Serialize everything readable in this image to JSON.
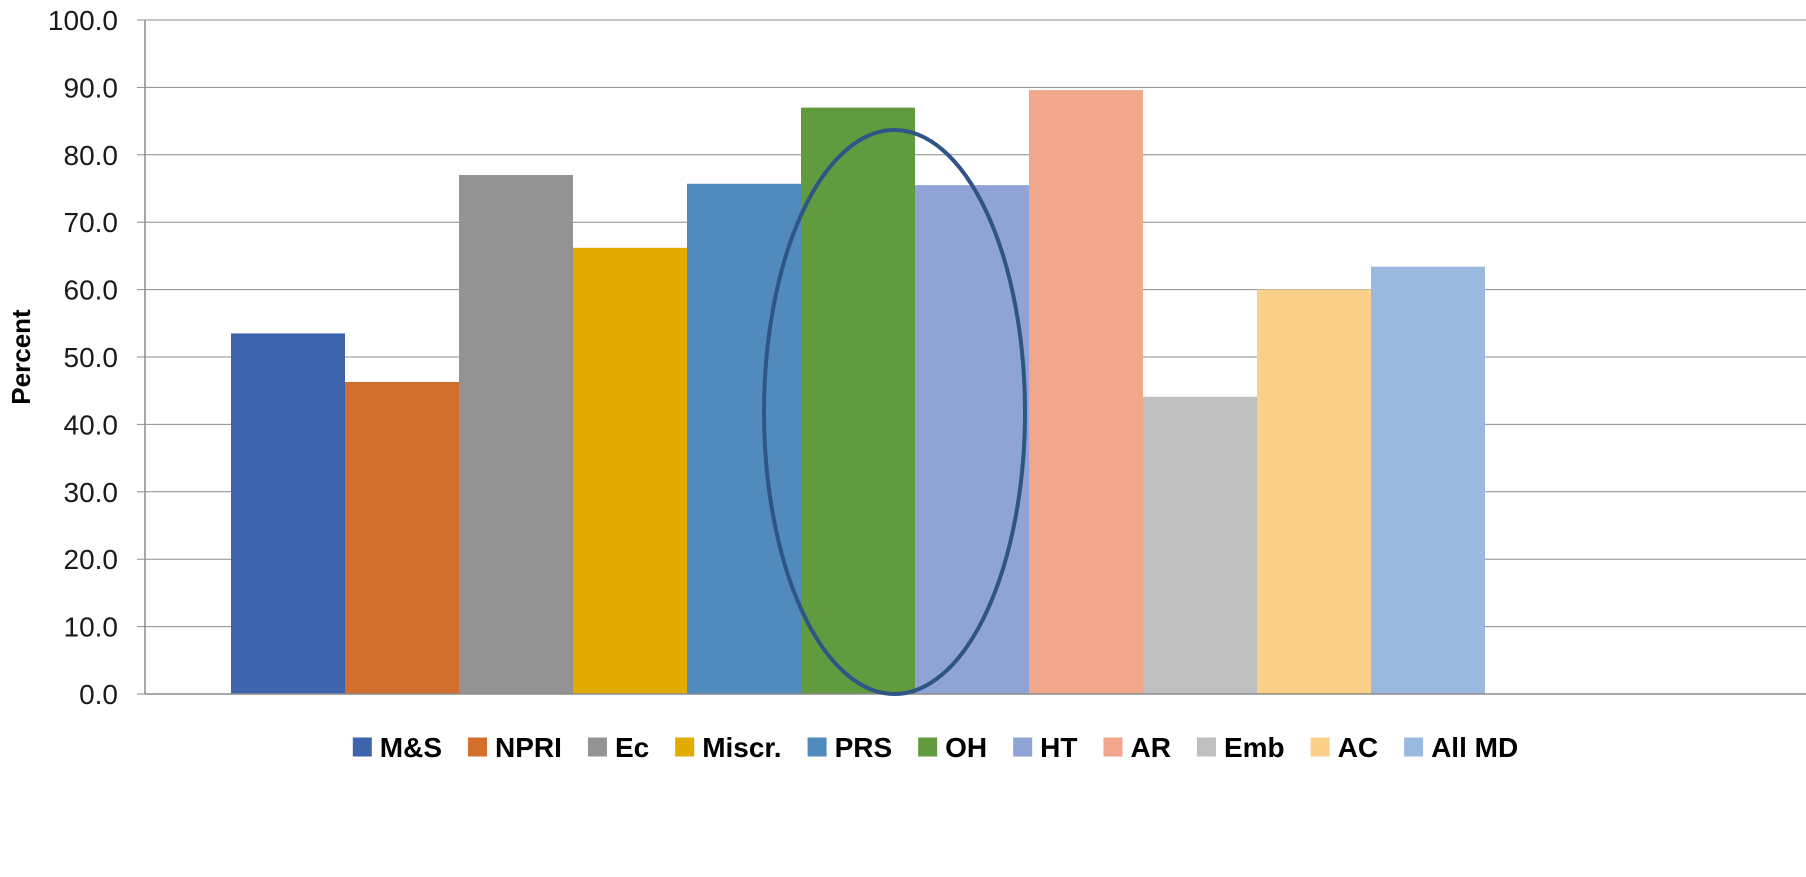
{
  "chart_data": {
    "type": "bar",
    "title": "",
    "xlabel": "",
    "ylabel": "Percent",
    "ylim": [
      0,
      100
    ],
    "y_ticks": [
      "0.0",
      "10.0",
      "20.0",
      "30.0",
      "40.0",
      "50.0",
      "60.0",
      "70.0",
      "80.0",
      "90.0",
      "100.0"
    ],
    "grid": true,
    "legend_position": "bottom",
    "series": [
      {
        "name": "M&S",
        "value": 53.5,
        "color": "#3d64ad"
      },
      {
        "name": "NPRI",
        "value": 46.3,
        "color": "#d36f2c"
      },
      {
        "name": "Ec",
        "value": 77.0,
        "color": "#939393"
      },
      {
        "name": "Miscr.",
        "value": 66.2,
        "color": "#e1ab00"
      },
      {
        "name": "PRS",
        "value": 75.7,
        "color": "#518abd"
      },
      {
        "name": "OH",
        "value": 87.0,
        "color": "#629a40"
      },
      {
        "name": "HT",
        "value": 75.5,
        "color": "#8fa4d4"
      },
      {
        "name": "AR",
        "value": 89.6,
        "color": "#f0a78b"
      },
      {
        "name": "Emb",
        "value": 44.1,
        "color": "#bfbfbf"
      },
      {
        "name": "AC",
        "value": 60.0,
        "color": "#fcd088"
      },
      {
        "name": "All MD",
        "value": 63.4,
        "color": "#99b9df"
      }
    ],
    "annotation": {
      "shape": "ellipse",
      "encloses": [
        "OH",
        "HT"
      ],
      "color": "#2f5586"
    }
  }
}
